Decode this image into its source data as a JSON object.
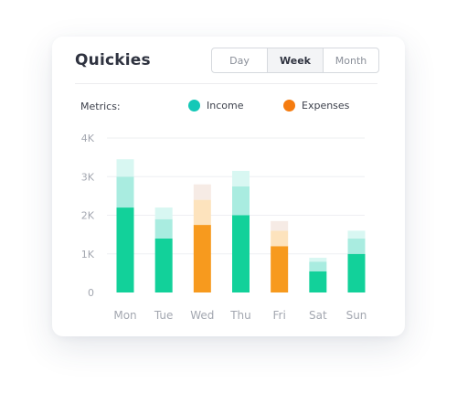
{
  "header": {
    "title": "Quickies",
    "periods": [
      "Day",
      "Week",
      "Month"
    ],
    "active_period": "Week"
  },
  "metrics_label": "Metrics:",
  "colors": {
    "income": "#14c8b7",
    "income_bar": "#12d19a",
    "income_light1": "#a9ece0",
    "income_light2": "#d8f7f2",
    "expenses": "#f57c10",
    "expenses_bar": "#f79a1e",
    "expenses_light1": "#fde3bd",
    "expenses_light2": "#f6ebe5",
    "grid": "#eeeff2",
    "tick": "#a3a7b0"
  },
  "chart_data": {
    "type": "bar",
    "stacked": true,
    "categories": [
      "Mon",
      "Tue",
      "Wed",
      "Thu",
      "Fri",
      "Sat",
      "Sun"
    ],
    "y_ticks": [
      "0",
      "1K",
      "2K",
      "3K",
      "4K"
    ],
    "ylim": [
      0,
      4000
    ],
    "grid": true,
    "legend": [
      {
        "label": "Income",
        "color_key": "income"
      },
      {
        "label": "Expenses",
        "color_key": "expenses"
      }
    ],
    "bar_types": [
      "income",
      "income",
      "expenses",
      "income",
      "expenses",
      "income",
      "income"
    ],
    "series": [
      {
        "values": [
          2200,
          1400,
          1750,
          2000,
          1200,
          550,
          1000
        ]
      },
      {
        "values": [
          800,
          500,
          650,
          750,
          400,
          250,
          400
        ]
      },
      {
        "values": [
          450,
          300,
          400,
          400,
          250,
          100,
          200
        ]
      }
    ]
  }
}
